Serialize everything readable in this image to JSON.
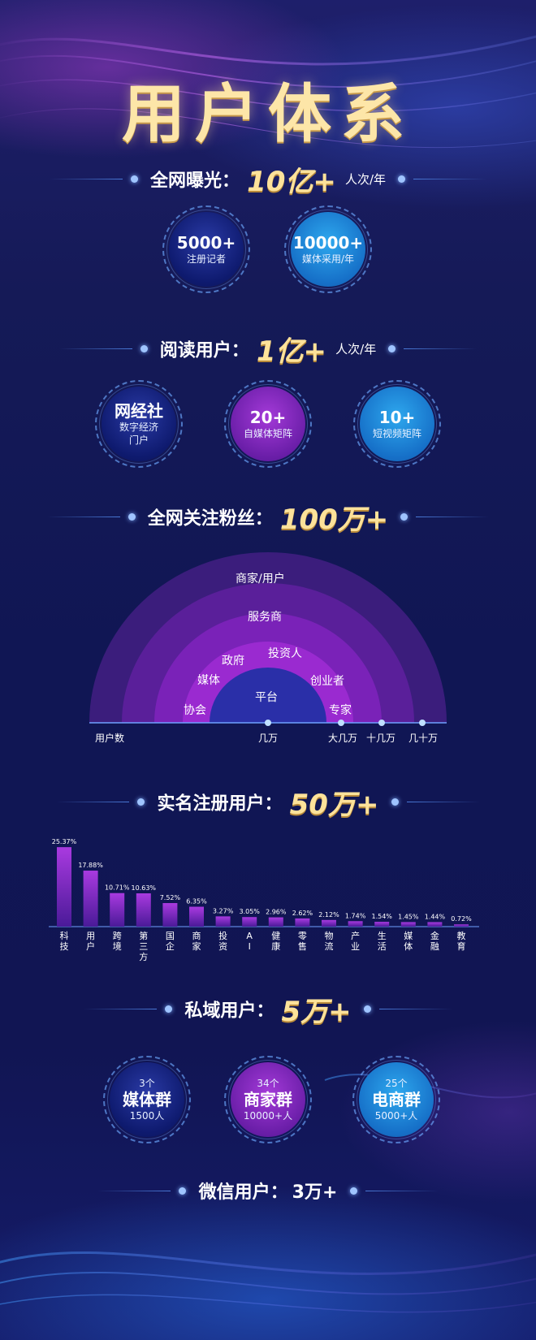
{
  "title": "用户体系",
  "colors": {
    "accent_gold": "#fde29a",
    "purple": "#8a2cc8",
    "navy": "#101654",
    "blue": "#1e88dd"
  },
  "exposure": {
    "label": "全网曝光：",
    "value": "10亿+",
    "unit": "人次/年",
    "circles": [
      {
        "main": "5000+",
        "sub": "注册记者"
      },
      {
        "main": "10000+",
        "sub": "媒体采用/年"
      }
    ]
  },
  "readers": {
    "label": "阅读用户：",
    "value": "1亿+",
    "unit": "人次/年",
    "circles": [
      {
        "main": "网经社",
        "sub": "数字经济",
        "sub2": "门户"
      },
      {
        "main": "20+",
        "sub": "自媒体矩阵"
      },
      {
        "main": "10+",
        "sub": "短视频矩阵"
      }
    ]
  },
  "fans": {
    "label": "全网关注粉丝：",
    "value": "100万+",
    "fan_labels": [
      "商家/用户",
      "服务商",
      "投资人",
      "政府",
      "媒体",
      "创业者",
      "平台",
      "协会",
      "专家"
    ],
    "axis": [
      "用户数",
      "几万",
      "大几万",
      "十几万",
      "几十万"
    ]
  },
  "registered": {
    "label": "实名注册用户：",
    "value": "50万+"
  },
  "chart_data": {
    "type": "bar",
    "categories": [
      "科技",
      "用户",
      "跨境",
      "第三方",
      "国企",
      "商家",
      "投资",
      "AI",
      "健康",
      "零售",
      "物流",
      "产业",
      "生活",
      "媒体",
      "金融",
      "教育"
    ],
    "category_lines": [
      [
        "科",
        "技"
      ],
      [
        "用",
        "户"
      ],
      [
        "跨",
        "境"
      ],
      [
        "第",
        "三",
        "方"
      ],
      [
        "国",
        "企"
      ],
      [
        "商",
        "家"
      ],
      [
        "投",
        "资"
      ],
      [
        "A",
        "I"
      ],
      [
        "健",
        "康"
      ],
      [
        "零",
        "售"
      ],
      [
        "物",
        "流"
      ],
      [
        "产",
        "业"
      ],
      [
        "生",
        "活"
      ],
      [
        "媒",
        "体"
      ],
      [
        "金",
        "融"
      ],
      [
        "教",
        "育"
      ]
    ],
    "values": [
      25.37,
      17.88,
      10.71,
      10.63,
      7.52,
      6.35,
      3.27,
      3.05,
      2.96,
      2.62,
      2.12,
      1.74,
      1.54,
      1.45,
      1.44,
      0.72
    ],
    "labels": [
      "25.37%",
      "17.88%",
      "10.71%",
      "10.63%",
      "7.52%",
      "6.35%",
      "3.27%",
      "3.05%",
      "2.96%",
      "2.62%",
      "2.12%",
      "1.74%",
      "1.54%",
      "1.45%",
      "1.44%",
      "0.72%"
    ],
    "ylim": [
      0,
      28
    ],
    "grid": false
  },
  "private": {
    "label": "私域用户：",
    "value": "5万+",
    "circles": [
      {
        "top": "3个",
        "main": "媒体群",
        "sub": "1500人"
      },
      {
        "top": "34个",
        "main": "商家群",
        "sub": "10000+人"
      },
      {
        "top": "25个",
        "main": "电商群",
        "sub": "5000+人"
      }
    ]
  },
  "wechat": {
    "label": "微信用户：",
    "value": "3万+"
  }
}
